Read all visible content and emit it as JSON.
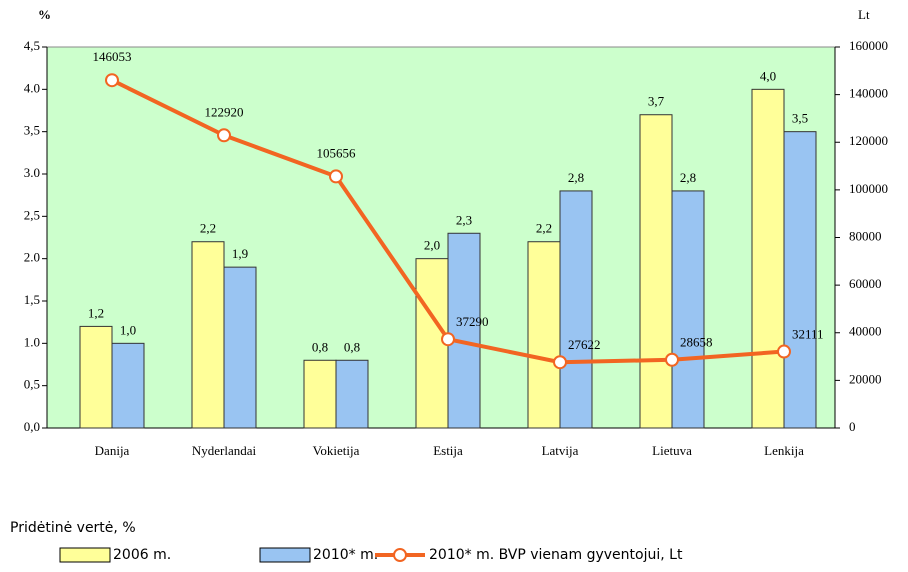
{
  "chart_data": {
    "type": "bar-line",
    "y_label": "%",
    "y2_label": "Lt",
    "categories": [
      "Danija",
      "Nyderlandai",
      "Vokietija",
      "Estija",
      "Latvija",
      "Lietuva",
      "Lenkija"
    ],
    "series": [
      {
        "name": "2006 m.",
        "color": "#ffff99",
        "values": [
          1.2,
          2.2,
          0.8,
          2.0,
          2.2,
          3.7,
          4.0
        ],
        "value_labels": [
          "1,2",
          "2,2",
          "0,8",
          "2,0",
          "2,2",
          "3,7",
          "4,0"
        ]
      },
      {
        "name": "2010* m.",
        "color": "#99c4f2",
        "values": [
          1.0,
          1.9,
          0.8,
          2.3,
          2.8,
          2.8,
          3.5
        ],
        "value_labels": [
          "1,0",
          "1,9",
          "0,8",
          "2,3",
          "2,8",
          "2,8",
          "3,5"
        ]
      },
      {
        "name": "2010* m. BVP vienam gyventojui, Lt",
        "color": "#f26522",
        "axis": "y2",
        "values": [
          146053,
          122920,
          105656,
          37290,
          27622,
          28658,
          32111
        ]
      }
    ],
    "ylim": [
      0,
      4.5
    ],
    "yticks": [
      {
        "value": 0,
        "label": "0,0"
      },
      {
        "value": 0.5,
        "label": "0,5"
      },
      {
        "value": 1,
        "label": "1.0"
      },
      {
        "value": 1.5,
        "label": "1,5"
      },
      {
        "value": 2,
        "label": "2.0"
      },
      {
        "value": 2.5,
        "label": "2,5"
      },
      {
        "value": 3,
        "label": "3.0"
      },
      {
        "value": 3.5,
        "label": "3,5"
      },
      {
        "value": 4,
        "label": "4.0"
      },
      {
        "value": 4.5,
        "label": "4,5"
      }
    ],
    "y2lim": [
      0,
      160000
    ],
    "y2ticks": [
      0,
      20000,
      40000,
      60000,
      80000,
      100000,
      120000,
      140000,
      160000
    ],
    "legend_title": "Pridėtinė vertė, %",
    "plot_background": "#ccffcc"
  }
}
